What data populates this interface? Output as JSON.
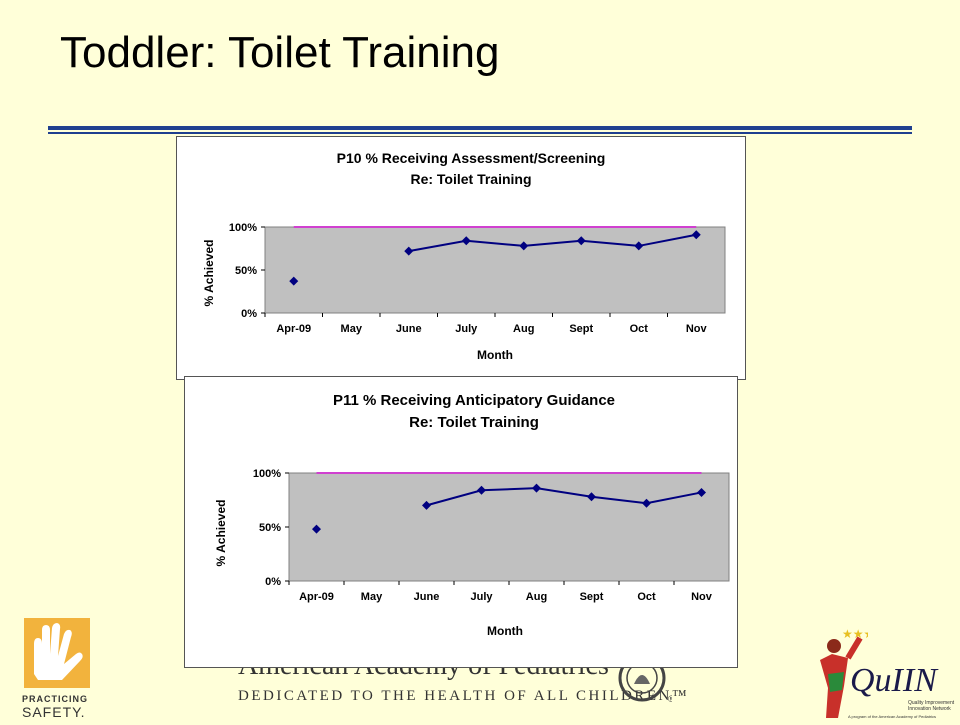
{
  "slide": {
    "title": "Toddler: Toilet Training"
  },
  "footer": {
    "aap_name": "American Academy of Pediatrics",
    "aap_tagline": "DEDICATED TO THE HEALTH OF ALL CHILDREN™",
    "ps_line1": "PRACTICING",
    "ps_line2": "SAFETY.",
    "quiin_name": "QuIIN",
    "quiin_sub1": "Quality Improvement",
    "quiin_sub2": "Innovation Network",
    "quiin_sub3": "A program of the American Academy of Pediatrics"
  },
  "colors": {
    "background": "#ffffd9",
    "rule": "#1f3f8f",
    "plot_area": "#c0c0c0",
    "series": "#000080",
    "target": "#d040d0"
  },
  "chart_data": [
    {
      "type": "line",
      "title": "P10 % Receiving Assessment/Screening",
      "subtitle": "Re: Toilet Training",
      "xlabel": "Month",
      "ylabel": "% Achieved",
      "categories": [
        "Apr-09",
        "May",
        "June",
        "July",
        "Aug",
        "Sept",
        "Oct",
        "Nov"
      ],
      "yticks": [
        "0%",
        "50%",
        "100%"
      ],
      "ylim": [
        0,
        100
      ],
      "grid": false,
      "target": 100,
      "series": [
        {
          "values": [
            37,
            null,
            72,
            84,
            78,
            84,
            78,
            91
          ]
        }
      ]
    },
    {
      "type": "line",
      "title": "P11 % Receiving Anticipatory Guidance",
      "subtitle": "Re: Toilet Training",
      "xlabel": "Month",
      "ylabel": "% Achieved",
      "categories": [
        "Apr-09",
        "May",
        "June",
        "July",
        "Aug",
        "Sept",
        "Oct",
        "Nov"
      ],
      "yticks": [
        "0%",
        "50%",
        "100%"
      ],
      "ylim": [
        0,
        100
      ],
      "grid": false,
      "target": 100,
      "series": [
        {
          "values": [
            48,
            null,
            70,
            84,
            86,
            78,
            72,
            82
          ]
        }
      ]
    }
  ]
}
